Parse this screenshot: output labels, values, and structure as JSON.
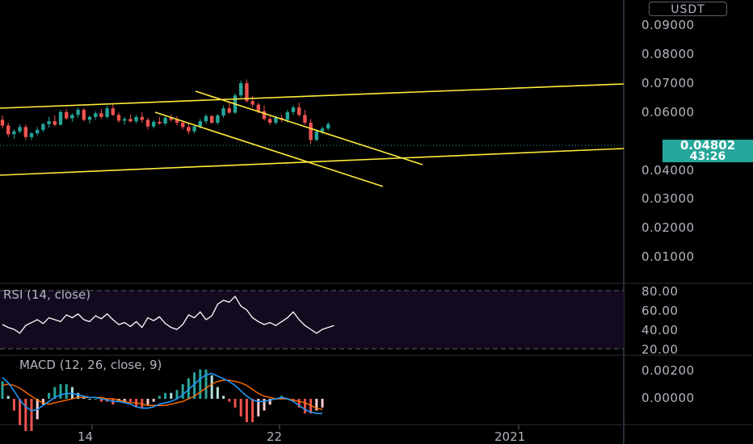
{
  "header": {
    "currency": "USDT"
  },
  "price_axis": {
    "labels": [
      "0.09000",
      "0.08000",
      "0.07000",
      "0.06000",
      "0.04000",
      "0.03000",
      "0.02000",
      "0.01000"
    ],
    "current_price": "0.04802",
    "countdown": "43:26"
  },
  "rsi": {
    "title": "RSI (14, close)",
    "labels": [
      "80.00",
      "60.00",
      "40.00",
      "20.00"
    ]
  },
  "macd": {
    "title": "MACD (12, 26, close, 9)",
    "labels": [
      "0.00200",
      "0.00000"
    ]
  },
  "time_axis": {
    "labels": [
      "14",
      "22",
      "2021"
    ]
  },
  "colors": {
    "up": "#26a69a",
    "down": "#ef5350",
    "trendline": "#ffeb3b",
    "rsi_background": "#130a1f",
    "macd_line": "#2196f3",
    "signal_line": "#ff6d00"
  },
  "chart_data": {
    "type": "candlestick",
    "ylim": [
      0,
      0.095
    ],
    "candles": [
      [
        0.0495,
        0.051,
        0.0465,
        0.0475
      ],
      [
        0.0475,
        0.0485,
        0.0435,
        0.0445
      ],
      [
        0.0445,
        0.0462,
        0.043,
        0.0455
      ],
      [
        0.0455,
        0.048,
        0.0448,
        0.047
      ],
      [
        0.047,
        0.0478,
        0.0425,
        0.0435
      ],
      [
        0.0435,
        0.0452,
        0.0425,
        0.0448
      ],
      [
        0.0448,
        0.047,
        0.044,
        0.046
      ],
      [
        0.046,
        0.0485,
        0.0452,
        0.048
      ],
      [
        0.048,
        0.0505,
        0.0468,
        0.049
      ],
      [
        0.049,
        0.051,
        0.0472,
        0.0478
      ],
      [
        0.0478,
        0.053,
        0.0475,
        0.0522
      ],
      [
        0.0522,
        0.0532,
        0.0495,
        0.05
      ],
      [
        0.05,
        0.0518,
        0.0488,
        0.0512
      ],
      [
        0.0512,
        0.0538,
        0.0502,
        0.053
      ],
      [
        0.053,
        0.0536,
        0.049,
        0.0495
      ],
      [
        0.0495,
        0.051,
        0.0482,
        0.0505
      ],
      [
        0.0505,
        0.0525,
        0.0495,
        0.0518
      ],
      [
        0.0518,
        0.0532,
        0.0498,
        0.0505
      ],
      [
        0.0505,
        0.0545,
        0.05,
        0.0535
      ],
      [
        0.0535,
        0.0548,
        0.0508,
        0.0512
      ],
      [
        0.0512,
        0.052,
        0.0485,
        0.0492
      ],
      [
        0.0492,
        0.0505,
        0.0478,
        0.0498
      ],
      [
        0.0498,
        0.0512,
        0.0485,
        0.049
      ],
      [
        0.049,
        0.0512,
        0.0482,
        0.0505
      ],
      [
        0.0505,
        0.0522,
        0.0485,
        0.0495
      ],
      [
        0.0495,
        0.0502,
        0.0462,
        0.0472
      ],
      [
        0.0472,
        0.0495,
        0.0465,
        0.0488
      ],
      [
        0.0488,
        0.0505,
        0.0478,
        0.0482
      ],
      [
        0.0482,
        0.051,
        0.0475,
        0.0502
      ],
      [
        0.0502,
        0.0515,
        0.0488,
        0.0495
      ],
      [
        0.0495,
        0.0508,
        0.0475,
        0.0485
      ],
      [
        0.0485,
        0.0492,
        0.0462,
        0.047
      ],
      [
        0.047,
        0.0482,
        0.0445,
        0.0455
      ],
      [
        0.0455,
        0.0478,
        0.0448,
        0.0472
      ],
      [
        0.0472,
        0.0498,
        0.0465,
        0.049
      ],
      [
        0.049,
        0.0515,
        0.0482,
        0.0508
      ],
      [
        0.0508,
        0.0512,
        0.048,
        0.0485
      ],
      [
        0.0485,
        0.0515,
        0.0478,
        0.051
      ],
      [
        0.051,
        0.0545,
        0.0502,
        0.0535
      ],
      [
        0.0535,
        0.056,
        0.0515,
        0.052
      ],
      [
        0.052,
        0.0588,
        0.0515,
        0.058
      ],
      [
        0.058,
        0.0632,
        0.0572,
        0.0622
      ],
      [
        0.0622,
        0.0635,
        0.0555,
        0.056
      ],
      [
        0.056,
        0.0578,
        0.0538,
        0.0548
      ],
      [
        0.0548,
        0.0555,
        0.0518,
        0.0525
      ],
      [
        0.0525,
        0.0545,
        0.0492,
        0.0498
      ],
      [
        0.0498,
        0.0508,
        0.0478,
        0.0485
      ],
      [
        0.0485,
        0.051,
        0.0478,
        0.0502
      ],
      [
        0.0502,
        0.0512,
        0.0488,
        0.0495
      ],
      [
        0.0495,
        0.053,
        0.0485,
        0.0522
      ],
      [
        0.0522,
        0.0545,
        0.0512,
        0.0538
      ],
      [
        0.0538,
        0.0555,
        0.0505,
        0.0512
      ],
      [
        0.0512,
        0.053,
        0.0478,
        0.0485
      ],
      [
        0.0485,
        0.0498,
        0.0412,
        0.0425
      ],
      [
        0.0425,
        0.0462,
        0.042,
        0.0455
      ],
      [
        0.0455,
        0.0472,
        0.0445,
        0.0465
      ],
      [
        0.0465,
        0.0488,
        0.0458,
        0.048
      ]
    ],
    "rsi": [
      45,
      42,
      40,
      36,
      44,
      47,
      50,
      46,
      52,
      50,
      48,
      55,
      52,
      56,
      50,
      48,
      54,
      51,
      56,
      50,
      45,
      47,
      43,
      48,
      42,
      52,
      49,
      53,
      46,
      42,
      40,
      45,
      55,
      52,
      58,
      50,
      54,
      66,
      70,
      68,
      74,
      64,
      60,
      52,
      48,
      45,
      47,
      44,
      48,
      52,
      58,
      50,
      44,
      40,
      36,
      40,
      42,
      44
    ],
    "macd": [
      0.0016,
      0.0012,
      0.0006,
      -0.0001,
      -0.0006,
      -0.0009,
      -0.0008,
      -0.0005,
      -0.0002,
      0.0001,
      0.0003,
      0.0004,
      0.0004,
      0.0003,
      0.0002,
      0.0001,
      0.0001,
      0,
      -0.0001,
      -0.0002,
      -0.0002,
      -0.0003,
      -0.0004,
      -0.0006,
      -0.0007,
      -0.0007,
      -0.0006,
      -0.0004,
      -0.0003,
      -0.0002,
      0,
      0.0003,
      0.0007,
      0.0011,
      0.0015,
      0.0018,
      0.0019,
      0.0017,
      0.0015,
      0.0013,
      0.001,
      0.0006,
      0.0002,
      -0.0001,
      -0.0002,
      -0.0002,
      -0.0001,
      0,
      0.0001,
      0,
      -0.0002,
      -0.0005,
      -0.0008,
      -0.001,
      -0.0011,
      -0.0011
    ],
    "signal": [
      0.001,
      0.0011,
      0.001,
      0.0008,
      0.0005,
      0.0002,
      -0.0001,
      -0.0003,
      -0.0004,
      -0.0003,
      -0.0002,
      -0.0001,
      0,
      0.0001,
      0.0001,
      0.0001,
      0.0001,
      0.0001,
      0,
      0,
      -0.0001,
      -0.0002,
      -0.0003,
      -0.0003,
      -0.0004,
      -0.0005,
      -0.0005,
      -0.0005,
      -0.0005,
      -0.0004,
      -0.0003,
      -0.0002,
      0,
      0.0002,
      0.0005,
      0.0008,
      0.0011,
      0.0013,
      0.0014,
      0.0014,
      0.0013,
      0.0012,
      0.001,
      0.0007,
      0.0004,
      0.0002,
      0.0001,
      0,
      0,
      0,
      -0.0001,
      -0.0002,
      -0.0003,
      -0.0005,
      -0.0007,
      -0.0008
    ]
  }
}
